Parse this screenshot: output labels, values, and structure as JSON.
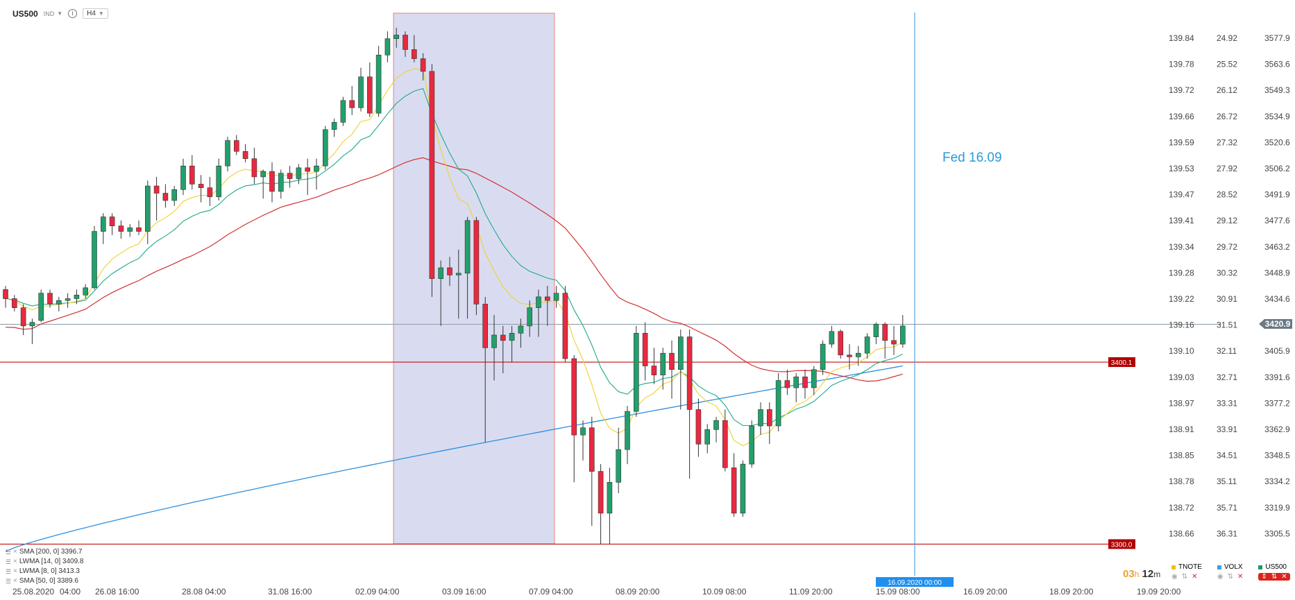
{
  "header": {
    "symbol": "US500",
    "market": "IND",
    "timeframe": "H4"
  },
  "axes": {
    "tnote": [
      "139.84",
      "139.78",
      "139.72",
      "139.66",
      "139.59",
      "139.53",
      "139.47",
      "139.41",
      "139.34",
      "139.28",
      "139.22",
      "139.16",
      "139.10",
      "139.03",
      "138.97",
      "138.91",
      "138.85",
      "138.78",
      "138.72",
      "138.66"
    ],
    "volx": [
      "24.92",
      "25.52",
      "26.12",
      "26.72",
      "27.32",
      "27.92",
      "28.52",
      "29.12",
      "29.72",
      "30.32",
      "30.91",
      "31.51",
      "32.11",
      "32.71",
      "33.31",
      "33.91",
      "34.51",
      "35.11",
      "35.71",
      "36.31"
    ],
    "us500": [
      "3577.9",
      "3563.6",
      "3549.3",
      "3534.9",
      "3520.6",
      "3506.2",
      "3491.9",
      "3477.6",
      "3463.2",
      "3448.9",
      "3434.6",
      "",
      "3405.9",
      "3391.6",
      "3377.2",
      "3362.9",
      "3348.5",
      "3334.2",
      "3319.9",
      "3305.5"
    ],
    "x_labels": [
      "25.08.2020",
      "04:00",
      "26.08 16:00",
      "28.08 04:00",
      "31.08 16:00",
      "02.09 04:00",
      "03.09 16:00",
      "07.09 04:00",
      "08.09 20:00",
      "10.09 08:00",
      "11.09 20:00",
      "15.09 08:00",
      "16.09 20:00",
      "18.09 20:00",
      "19.09 20:00"
    ]
  },
  "current_price": "3420.9",
  "levels": [
    "3400.1",
    "3300.0"
  ],
  "annotation": "Fed 16.09",
  "crosshair_label": "16.09.2020 00:00",
  "indicators": [
    "SMA [200, 0] 3396.7",
    "LWMA [14, 0] 3409.8",
    "LWMA [8, 0] 3413.3",
    "SMA [50, 0] 3389.6"
  ],
  "countdown": {
    "hours": "03",
    "minutes": "12"
  },
  "series_tabs": [
    {
      "name": "TNOTE",
      "color": "#f2c200"
    },
    {
      "name": "VOLX",
      "color": "#3aa0e8"
    },
    {
      "name": "US500",
      "color": "#1a9a6a"
    }
  ],
  "colors": {
    "up": "#22a06b",
    "down": "#e8293f",
    "sma200": "#2d8fe0",
    "sma50": "#d03030",
    "lwma14": "#1fa88a",
    "lwma8": "#f0d030",
    "level": "#c01010",
    "highlight": "#d9dcf0"
  },
  "chart_data": {
    "type": "candlestick",
    "series": [
      {
        "name": "US500",
        "ohlc_values": [
          [
            3440,
            3442,
            3430,
            3435
          ],
          [
            3435,
            3437,
            3428,
            3430
          ],
          [
            3430,
            3432,
            3415,
            3420
          ],
          [
            3420,
            3424,
            3410,
            3422
          ],
          [
            3423,
            3440,
            3422,
            3438
          ],
          [
            3438,
            3440,
            3430,
            3432
          ],
          [
            3432,
            3436,
            3428,
            3434
          ],
          [
            3434,
            3438,
            3430,
            3435
          ],
          [
            3435,
            3440,
            3432,
            3437
          ],
          [
            3437,
            3443,
            3435,
            3441
          ],
          [
            3441,
            3475,
            3440,
            3472
          ],
          [
            3472,
            3482,
            3465,
            3480
          ],
          [
            3480,
            3482,
            3470,
            3475
          ],
          [
            3475,
            3478,
            3468,
            3472
          ],
          [
            3472,
            3476,
            3469,
            3474
          ],
          [
            3474,
            3478,
            3470,
            3472
          ],
          [
            3472,
            3500,
            3465,
            3497
          ],
          [
            3497,
            3502,
            3478,
            3493
          ],
          [
            3493,
            3498,
            3485,
            3489
          ],
          [
            3489,
            3497,
            3486,
            3495
          ],
          [
            3495,
            3512,
            3492,
            3508
          ],
          [
            3508,
            3514,
            3495,
            3498
          ],
          [
            3498,
            3503,
            3488,
            3496
          ],
          [
            3496,
            3502,
            3486,
            3491
          ],
          [
            3491,
            3512,
            3489,
            3508
          ],
          [
            3508,
            3524,
            3505,
            3522
          ],
          [
            3522,
            3525,
            3514,
            3516
          ],
          [
            3516,
            3520,
            3510,
            3512
          ],
          [
            3512,
            3518,
            3498,
            3502
          ],
          [
            3502,
            3506,
            3490,
            3505
          ],
          [
            3505,
            3510,
            3488,
            3494
          ],
          [
            3494,
            3506,
            3490,
            3504
          ],
          [
            3504,
            3508,
            3496,
            3501
          ],
          [
            3501,
            3509,
            3498,
            3507
          ],
          [
            3507,
            3512,
            3492,
            3505
          ],
          [
            3505,
            3512,
            3495,
            3508
          ],
          [
            3508,
            3530,
            3506,
            3528
          ],
          [
            3528,
            3534,
            3524,
            3532
          ],
          [
            3532,
            3546,
            3530,
            3544
          ],
          [
            3544,
            3552,
            3536,
            3540
          ],
          [
            3540,
            3562,
            3538,
            3557
          ],
          [
            3557,
            3565,
            3535,
            3537
          ],
          [
            3537,
            3574,
            3535,
            3569
          ],
          [
            3569,
            3582,
            3565,
            3578
          ],
          [
            3578,
            3584,
            3573,
            3580
          ],
          [
            3580,
            3582,
            3568,
            3572
          ],
          [
            3572,
            3580,
            3565,
            3567
          ],
          [
            3567,
            3570,
            3555,
            3560
          ],
          [
            3560,
            3564,
            3436,
            3446
          ],
          [
            3446,
            3456,
            3420,
            3452
          ],
          [
            3452,
            3458,
            3442,
            3448
          ],
          [
            3448,
            3462,
            3424,
            3449
          ],
          [
            3449,
            3480,
            3424,
            3478
          ],
          [
            3478,
            3480,
            3426,
            3432
          ],
          [
            3432,
            3436,
            3356,
            3408
          ],
          [
            3408,
            3426,
            3390,
            3415
          ],
          [
            3415,
            3420,
            3394,
            3412
          ],
          [
            3412,
            3420,
            3400,
            3416
          ],
          [
            3416,
            3424,
            3408,
            3420
          ],
          [
            3420,
            3434,
            3414,
            3430
          ],
          [
            3430,
            3440,
            3414,
            3436
          ],
          [
            3436,
            3442,
            3420,
            3434
          ],
          [
            3434,
            3442,
            3430,
            3438
          ],
          [
            3438,
            3442,
            3400,
            3402
          ],
          [
            3402,
            3404,
            3334,
            3360
          ],
          [
            3360,
            3368,
            3346,
            3364
          ],
          [
            3364,
            3370,
            3310,
            3340
          ],
          [
            3340,
            3344,
            3300,
            3317
          ],
          [
            3317,
            3342,
            3300,
            3334
          ],
          [
            3334,
            3364,
            3328,
            3352
          ],
          [
            3352,
            3376,
            3344,
            3373
          ],
          [
            3373,
            3420,
            3370,
            3416
          ],
          [
            3416,
            3422,
            3390,
            3398
          ],
          [
            3398,
            3408,
            3388,
            3393
          ],
          [
            3393,
            3408,
            3385,
            3405
          ],
          [
            3405,
            3412,
            3380,
            3396
          ],
          [
            3396,
            3418,
            3374,
            3414
          ],
          [
            3414,
            3418,
            3336,
            3374
          ],
          [
            3374,
            3380,
            3348,
            3355
          ],
          [
            3355,
            3366,
            3350,
            3363
          ],
          [
            3363,
            3370,
            3356,
            3368
          ],
          [
            3368,
            3374,
            3340,
            3342
          ],
          [
            3342,
            3350,
            3315,
            3317
          ],
          [
            3317,
            3346,
            3315,
            3344
          ],
          [
            3344,
            3368,
            3342,
            3365
          ],
          [
            3365,
            3378,
            3360,
            3374
          ],
          [
            3374,
            3378,
            3355,
            3365
          ],
          [
            3365,
            3394,
            3362,
            3390
          ],
          [
            3390,
            3396,
            3382,
            3386
          ],
          [
            3386,
            3394,
            3378,
            3392
          ],
          [
            3392,
            3396,
            3380,
            3386
          ],
          [
            3386,
            3398,
            3382,
            3396
          ],
          [
            3396,
            3412,
            3393,
            3410
          ],
          [
            3410,
            3420,
            3408,
            3417
          ],
          [
            3417,
            3418,
            3402,
            3404
          ],
          [
            3404,
            3410,
            3396,
            3403
          ],
          [
            3403,
            3409,
            3398,
            3405
          ],
          [
            3405,
            3416,
            3402,
            3414
          ],
          [
            3414,
            3422,
            3410,
            3421
          ],
          [
            3421,
            3422,
            3402,
            3412
          ],
          [
            3412,
            3420,
            3404,
            3410
          ],
          [
            3410,
            3426,
            3408,
            3420
          ]
        ]
      }
    ],
    "ylim": [
      3296,
      3586
    ]
  }
}
